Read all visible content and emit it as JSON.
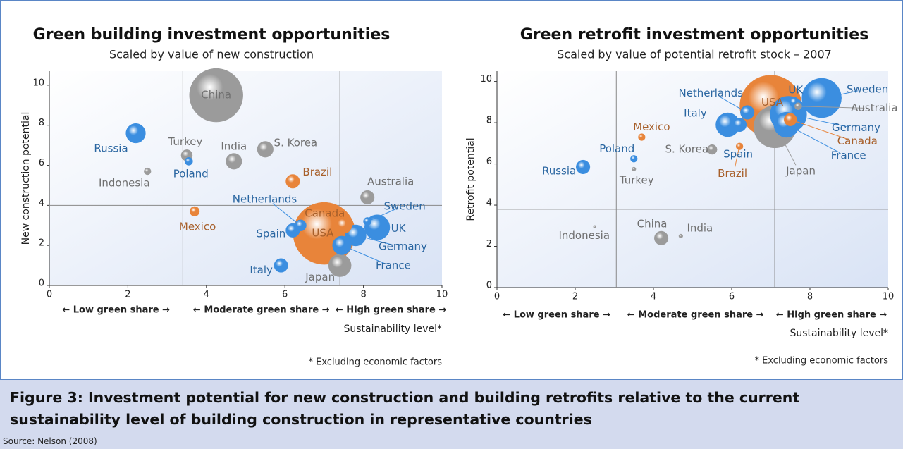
{
  "chart_data": [
    {
      "type": "bubble",
      "title": "Green building investment opportunities",
      "subtitle": "Scaled by value of new construction",
      "x_label": "Sustainability level*",
      "y_label": "New construction potential",
      "footnote": "* Excluding economic factors",
      "xlim": [
        0,
        10
      ],
      "ylim": [
        0,
        10.7
      ],
      "xticks": [
        0,
        2,
        4,
        6,
        8,
        10
      ],
      "yticks": [
        0,
        2,
        4,
        6,
        8,
        10
      ],
      "x_dividers": [
        3.4,
        7.4
      ],
      "y_divider": 4,
      "x_regions": [
        "← Low green share →",
        "← Moderate green share →",
        "← High green share →"
      ],
      "points": [
        {
          "name": "China",
          "x": 4.25,
          "y": 9.5,
          "size": 90,
          "color": "#9b9b9b"
        },
        {
          "name": "USA",
          "x": 7.0,
          "y": 2.6,
          "size": 121,
          "color": "#e8843a"
        },
        {
          "name": "UK",
          "x": 8.35,
          "y": 2.9,
          "size": 20,
          "color": "#3b8ee0"
        },
        {
          "name": "Japan",
          "x": 7.4,
          "y": 1.0,
          "size": 16,
          "color": "#9b9b9b"
        },
        {
          "name": "Germany",
          "x": 7.8,
          "y": 2.5,
          "size": 14,
          "color": "#3b8ee0"
        },
        {
          "name": "Russia",
          "x": 2.2,
          "y": 7.6,
          "size": 12,
          "color": "#3b8ee0"
        },
        {
          "name": "France",
          "x": 7.45,
          "y": 2.0,
          "size": 11,
          "color": "#3b8ee0"
        },
        {
          "name": "India",
          "x": 4.7,
          "y": 6.2,
          "size": 8,
          "color": "#9b9b9b"
        },
        {
          "name": "S. Korea",
          "x": 5.5,
          "y": 6.8,
          "size": 8,
          "color": "#9b9b9b"
        },
        {
          "name": "Canada",
          "x": 7.5,
          "y": 3.0,
          "size": 8,
          "color": "#e8843a"
        },
        {
          "name": "Brazil",
          "x": 6.2,
          "y": 5.2,
          "size": 6,
          "color": "#e8843a"
        },
        {
          "name": "Australia",
          "x": 8.1,
          "y": 4.4,
          "size": 6,
          "color": "#9b9b9b"
        },
        {
          "name": "Spain",
          "x": 6.2,
          "y": 2.75,
          "size": 6,
          "color": "#3b8ee0"
        },
        {
          "name": "Italy",
          "x": 5.9,
          "y": 1.0,
          "size": 6,
          "color": "#3b8ee0"
        },
        {
          "name": "Turkey",
          "x": 3.5,
          "y": 6.5,
          "size": 4,
          "color": "#9b9b9b"
        },
        {
          "name": "Netherlands",
          "x": 6.4,
          "y": 3.0,
          "size": 4,
          "color": "#3b8ee0"
        },
        {
          "name": "Mexico",
          "x": 3.7,
          "y": 3.7,
          "size": 3,
          "color": "#e8843a"
        },
        {
          "name": "Poland",
          "x": 3.55,
          "y": 6.2,
          "size": 2,
          "color": "#3b8ee0"
        },
        {
          "name": "Sweden",
          "x": 8.1,
          "y": 3.2,
          "size": 2,
          "color": "#3b8ee0"
        },
        {
          "name": "Indonesia",
          "x": 2.5,
          "y": 5.7,
          "size": 1.5,
          "color": "#9b9b9b"
        }
      ]
    },
    {
      "type": "bubble",
      "title": "Green retrofit investment opportunities",
      "subtitle": "Scaled by value of potential retrofit stock – 2007",
      "x_label": "Sustainability level*",
      "y_label": "Retrofit potential",
      "footnote": "* Excluding economic factors",
      "xlim": [
        0,
        10
      ],
      "ylim": [
        0,
        10.5
      ],
      "xticks": [
        0,
        2,
        4,
        6,
        8,
        10
      ],
      "yticks": [
        0,
        2,
        4,
        6,
        8,
        10
      ],
      "x_dividers": [
        3.05,
        7.1
      ],
      "y_divider": 3.8,
      "x_regions": [
        "← Low green share →",
        "← Moderate green share →",
        "← High green share →"
      ],
      "points": [
        {
          "name": "USA",
          "x": 7.0,
          "y": 8.8,
          "size": 121,
          "color": "#e8843a"
        },
        {
          "name": "Japan",
          "x": 7.1,
          "y": 7.8,
          "size": 56,
          "color": "#9b9b9b"
        },
        {
          "name": "Sweden",
          "x": 8.3,
          "y": 9.2,
          "size": 49,
          "color": "#3b8ee0"
        },
        {
          "name": "Germany",
          "x": 7.45,
          "y": 8.4,
          "size": 42,
          "color": "#3b8ee0"
        },
        {
          "name": "France",
          "x": 7.4,
          "y": 7.9,
          "size": 20,
          "color": "#3b8ee0"
        },
        {
          "name": "Italy",
          "x": 5.9,
          "y": 7.9,
          "size": 18,
          "color": "#3b8ee0"
        },
        {
          "name": "Netherlands",
          "x": 6.4,
          "y": 8.5,
          "size": 6,
          "color": "#3b8ee0"
        },
        {
          "name": "Spain",
          "x": 6.2,
          "y": 7.9,
          "size": 6,
          "color": "#3b8ee0"
        },
        {
          "name": "Russia",
          "x": 2.2,
          "y": 5.85,
          "size": 6,
          "color": "#3b8ee0"
        },
        {
          "name": "China",
          "x": 4.2,
          "y": 2.4,
          "size": 6,
          "color": "#9b9b9b"
        },
        {
          "name": "Canada",
          "x": 7.5,
          "y": 8.15,
          "size": 5,
          "color": "#e8843a"
        },
        {
          "name": "UK",
          "x": 7.6,
          "y": 9.0,
          "size": 3,
          "color": "#3b8ee0"
        },
        {
          "name": "Australia",
          "x": 7.7,
          "y": 8.8,
          "size": 1.6,
          "color": "#9b9b9b"
        },
        {
          "name": "S. Korea",
          "x": 5.5,
          "y": 6.7,
          "size": 3,
          "color": "#9b9b9b"
        },
        {
          "name": "Mexico",
          "x": 3.7,
          "y": 7.3,
          "size": 1.5,
          "color": "#e8843a"
        },
        {
          "name": "Brazil",
          "x": 6.2,
          "y": 6.85,
          "size": 1.5,
          "color": "#e8843a"
        },
        {
          "name": "Poland",
          "x": 3.5,
          "y": 6.25,
          "size": 1.5,
          "color": "#3b8ee0"
        },
        {
          "name": "Turkey",
          "x": 3.5,
          "y": 5.75,
          "size": 0.5,
          "color": "#9b9b9b"
        },
        {
          "name": "India",
          "x": 4.7,
          "y": 2.5,
          "size": 0.5,
          "color": "#9b9b9b"
        },
        {
          "name": "Indonesia",
          "x": 2.5,
          "y": 2.95,
          "size": 0.25,
          "color": "#9b9b9b"
        }
      ]
    }
  ],
  "figure": {
    "caption": "Figure 3: Investment potential for new construction and building retrofits relative to the current sustainability level of building construction in representative countries",
    "source": "Source: Nelson (2008)"
  }
}
